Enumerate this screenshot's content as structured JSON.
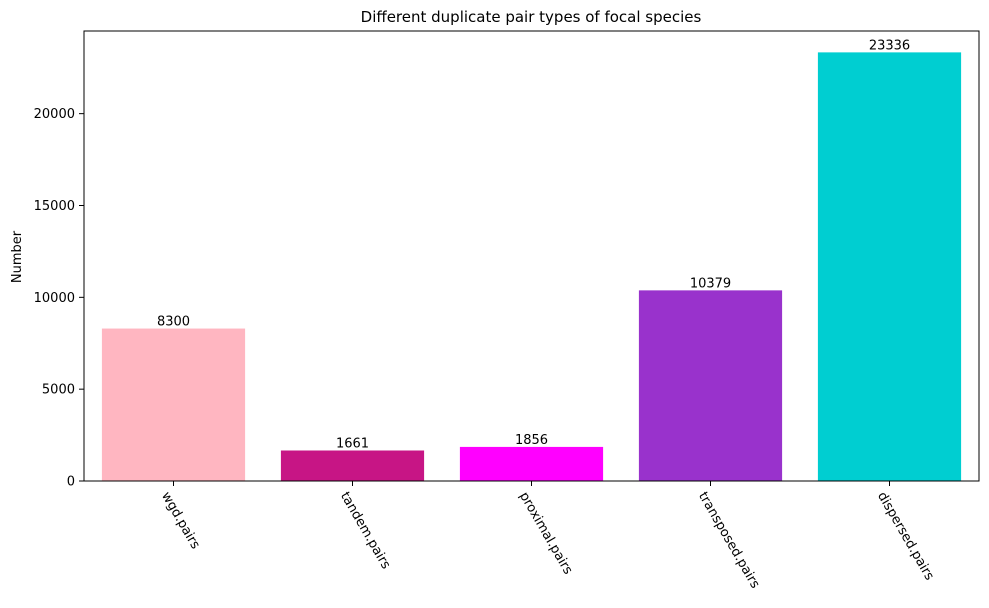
{
  "chart_data": {
    "type": "bar",
    "title": "Different duplicate pair types of focal species",
    "xlabel": "",
    "ylabel": "Number",
    "categories": [
      "wgd.pairs",
      "tandem.pairs",
      "proximal.pairs",
      "transposed.pairs",
      "dispersed.pairs"
    ],
    "values": [
      8300,
      1661,
      1856,
      10379,
      23336
    ],
    "data_labels": [
      "8300",
      "1661",
      "1856",
      "10379",
      "23336"
    ],
    "colors": [
      "#FFB6C1",
      "#C71585",
      "#FF00FF",
      "#9932CC",
      "#00CED1"
    ],
    "ylim": [
      0,
      24500
    ],
    "yticks": [
      0,
      5000,
      10000,
      15000,
      20000
    ],
    "ytick_labels": [
      "0",
      "5000",
      "10000",
      "15000",
      "20000"
    ],
    "xtick_rotation": "-60",
    "grid": false,
    "legend": "none"
  }
}
